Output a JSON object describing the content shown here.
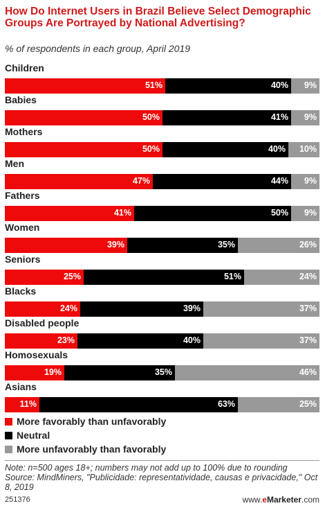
{
  "header": {
    "title": "How Do Internet Users in Brazil Believe Select Demographic Groups Are Portrayed by National Advertising?",
    "subtitle": "% of respondents in each group, April 2019"
  },
  "chart_data": {
    "type": "bar",
    "orientation": "horizontal",
    "stacked": true,
    "categories": [
      "Children",
      "Babies",
      "Mothers",
      "Men",
      "Fathers",
      "Women",
      "Seniors",
      "Blacks",
      "Disabled people",
      "Homosexuals",
      "Asians"
    ],
    "series": [
      {
        "name": "More favorably than unfavorably",
        "color": "#ee0a0a",
        "values": [
          51,
          50,
          50,
          47,
          41,
          39,
          25,
          24,
          23,
          19,
          11
        ],
        "labels": [
          "51%",
          "50%",
          "50%",
          "47%",
          "41%",
          "39%",
          "25%",
          "24%",
          "23%",
          "19%",
          "11%"
        ]
      },
      {
        "name": "Neutral",
        "color": "#000000",
        "values": [
          40,
          41,
          40,
          44,
          50,
          35,
          51,
          39,
          40,
          35,
          63
        ],
        "labels": [
          "40%",
          "41%",
          "40%",
          "44%",
          "50%",
          "35%",
          "51%",
          "39%",
          "40%",
          "35%",
          "63%"
        ]
      },
      {
        "name": "More unfavorably than favorably",
        "color": "#999999",
        "values": [
          9,
          9,
          10,
          9,
          9,
          26,
          24,
          37,
          37,
          46,
          25
        ],
        "labels": [
          "9%",
          "9%",
          "10%",
          "9%",
          "9%",
          "26%",
          "24%",
          "37%",
          "37%",
          "46%",
          "25%"
        ]
      }
    ],
    "xlim": [
      0,
      100
    ],
    "legend_position": "bottom-left",
    "grid": false
  },
  "legend": {
    "items": [
      {
        "label": "More favorably than unfavorably",
        "color": "#ee0a0a"
      },
      {
        "label": "Neutral",
        "color": "#000000"
      },
      {
        "label": "More unfavorably than favorably",
        "color": "#999999"
      }
    ]
  },
  "footer": {
    "note": "Note: n=500 ages 18+; numbers may not add up to 100% due to rounding",
    "source": "Source: MindMiners, \"Publicidade: representatividade, causas e privacidade,\" Oct 8, 2019",
    "chart_id": "251376",
    "brand_prefix": "www.",
    "brand_e": "e",
    "brand_rest": "Marketer",
    "brand_suffix": ".com"
  }
}
